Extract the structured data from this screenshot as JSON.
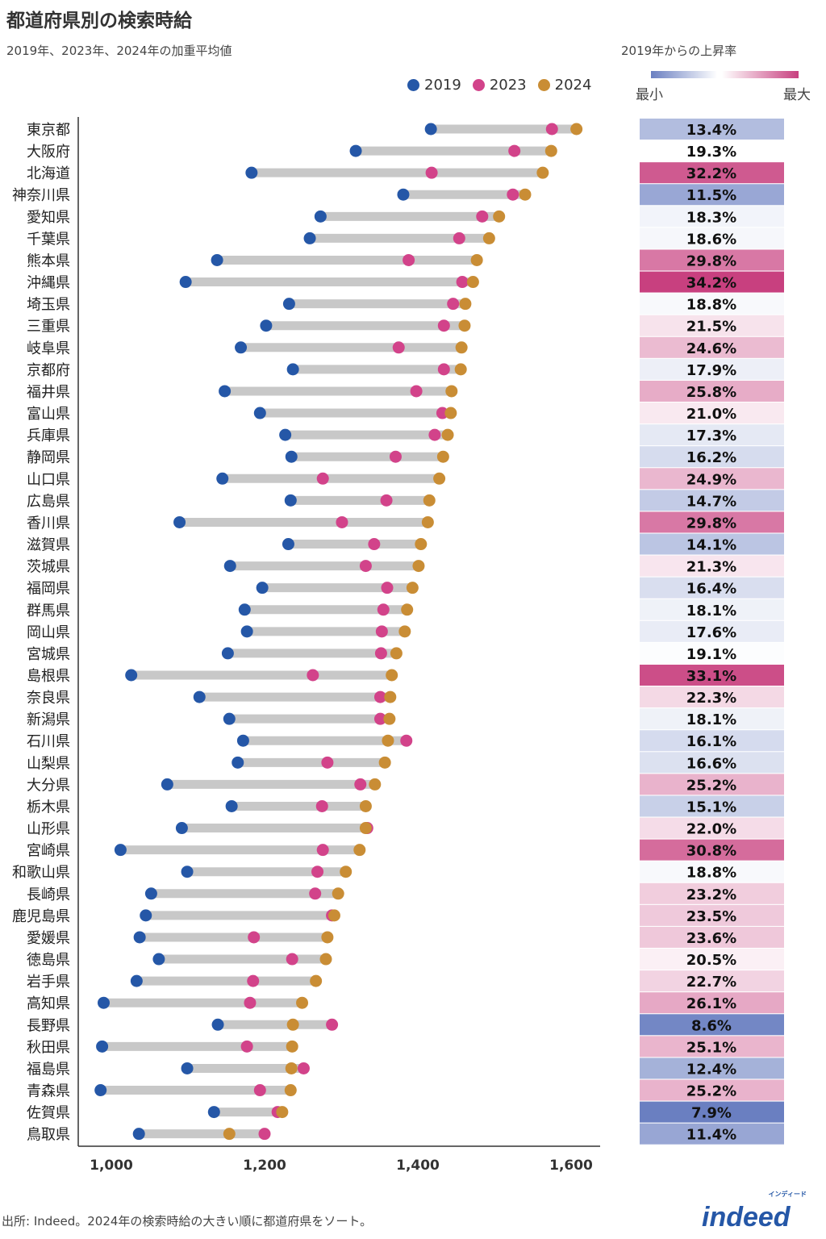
{
  "title": "都道府県別の検索時給",
  "subtitle": "2019年、2023年、2024年の加重平均値",
  "rate_panel": {
    "title": "2019年からの上昇率",
    "min_label": "最小",
    "max_label": "最大"
  },
  "source": "出所: Indeed。2024年の検索時給の大きい順に都道府県をソート。",
  "logo": {
    "text": "indeed",
    "sub": "インディード"
  },
  "colors": {
    "2019": "#2557a7",
    "2023": "#d2438a",
    "2024": "#c98d35",
    "bar": "#c8c8c8",
    "rate_min": "#6a7fc1",
    "rate_mid": "#ffffff",
    "rate_max": "#c8407f"
  },
  "chart_data": {
    "type": "dumbbell",
    "xlim": [
      1000,
      1650
    ],
    "xticks": [
      1000,
      1200,
      1400,
      1600
    ],
    "xtick_labels": [
      "1,000",
      "1,200",
      "1,400",
      "1,600"
    ],
    "legend_position": "top-right",
    "series_names": [
      "2019",
      "2023",
      "2024"
    ],
    "rows": [
      {
        "pref": "東京都",
        "v2019": 1417,
        "v2023": 1575,
        "v2024": 1607,
        "rate": "13.4%",
        "r": 13.4
      },
      {
        "pref": "大阪府",
        "v2019": 1319,
        "v2023": 1526,
        "v2024": 1574,
        "rate": "19.3%",
        "r": 19.3
      },
      {
        "pref": "北海道",
        "v2019": 1183,
        "v2023": 1418,
        "v2024": 1563,
        "rate": "32.2%",
        "r": 32.2
      },
      {
        "pref": "神奈川県",
        "v2019": 1381,
        "v2023": 1524,
        "v2024": 1540,
        "rate": "11.5%",
        "r": 11.5
      },
      {
        "pref": "愛知県",
        "v2019": 1273,
        "v2023": 1484,
        "v2024": 1506,
        "rate": "18.3%",
        "r": 18.3
      },
      {
        "pref": "千葉県",
        "v2019": 1259,
        "v2023": 1454,
        "v2024": 1493,
        "rate": "18.6%",
        "r": 18.6
      },
      {
        "pref": "熊本県",
        "v2019": 1138,
        "v2023": 1388,
        "v2024": 1477,
        "rate": "29.8%",
        "r": 29.8
      },
      {
        "pref": "沖縄県",
        "v2019": 1097,
        "v2023": 1458,
        "v2024": 1472,
        "rate": "34.2%",
        "r": 34.2
      },
      {
        "pref": "埼玉県",
        "v2019": 1232,
        "v2023": 1446,
        "v2024": 1462,
        "rate": "18.8%",
        "r": 18.8
      },
      {
        "pref": "三重県",
        "v2019": 1202,
        "v2023": 1434,
        "v2024": 1461,
        "rate": "21.5%",
        "r": 21.5
      },
      {
        "pref": "岐阜県",
        "v2019": 1169,
        "v2023": 1375,
        "v2024": 1457,
        "rate": "24.6%",
        "r": 24.6
      },
      {
        "pref": "京都府",
        "v2019": 1237,
        "v2023": 1434,
        "v2024": 1456,
        "rate": "17.9%",
        "r": 17.9
      },
      {
        "pref": "福井県",
        "v2019": 1148,
        "v2023": 1398,
        "v2024": 1444,
        "rate": "25.8%",
        "r": 25.8
      },
      {
        "pref": "富山県",
        "v2019": 1194,
        "v2023": 1432,
        "v2024": 1443,
        "rate": "21.0%",
        "r": 21.0
      },
      {
        "pref": "兵庫県",
        "v2019": 1227,
        "v2023": 1422,
        "v2024": 1439,
        "rate": "17.3%",
        "r": 17.3
      },
      {
        "pref": "静岡県",
        "v2019": 1235,
        "v2023": 1371,
        "v2024": 1433,
        "rate": "16.2%",
        "r": 16.2
      },
      {
        "pref": "山口県",
        "v2019": 1145,
        "v2023": 1276,
        "v2024": 1428,
        "rate": "24.9%",
        "r": 24.9
      },
      {
        "pref": "広島県",
        "v2019": 1234,
        "v2023": 1359,
        "v2024": 1415,
        "rate": "14.7%",
        "r": 14.7
      },
      {
        "pref": "香川県",
        "v2019": 1089,
        "v2023": 1301,
        "v2024": 1413,
        "rate": "29.8%",
        "r": 29.8
      },
      {
        "pref": "滋賀県",
        "v2019": 1231,
        "v2023": 1343,
        "v2024": 1404,
        "rate": "14.1%",
        "r": 14.1
      },
      {
        "pref": "茨城県",
        "v2019": 1155,
        "v2023": 1332,
        "v2024": 1401,
        "rate": "21.3%",
        "r": 21.3
      },
      {
        "pref": "福岡県",
        "v2019": 1197,
        "v2023": 1360,
        "v2024": 1393,
        "rate": "16.4%",
        "r": 16.4
      },
      {
        "pref": "群馬県",
        "v2019": 1174,
        "v2023": 1355,
        "v2024": 1386,
        "rate": "18.1%",
        "r": 18.1
      },
      {
        "pref": "岡山県",
        "v2019": 1177,
        "v2023": 1353,
        "v2024": 1383,
        "rate": "17.6%",
        "r": 17.6
      },
      {
        "pref": "宮城県",
        "v2019": 1152,
        "v2023": 1352,
        "v2024": 1372,
        "rate": "19.1%",
        "r": 19.1
      },
      {
        "pref": "島根県",
        "v2019": 1026,
        "v2023": 1263,
        "v2024": 1366,
        "rate": "33.1%",
        "r": 33.1
      },
      {
        "pref": "奈良県",
        "v2019": 1115,
        "v2023": 1351,
        "v2024": 1364,
        "rate": "22.3%",
        "r": 22.3
      },
      {
        "pref": "新潟県",
        "v2019": 1154,
        "v2023": 1351,
        "v2024": 1363,
        "rate": "18.1%",
        "r": 18.1
      },
      {
        "pref": "石川県",
        "v2019": 1172,
        "v2023": 1385,
        "v2024": 1361,
        "rate": "16.1%",
        "r": 16.1
      },
      {
        "pref": "山梨県",
        "v2019": 1165,
        "v2023": 1282,
        "v2024": 1357,
        "rate": "16.6%",
        "r": 16.6
      },
      {
        "pref": "大分県",
        "v2019": 1073,
        "v2023": 1325,
        "v2024": 1344,
        "rate": "25.2%",
        "r": 25.2
      },
      {
        "pref": "栃木県",
        "v2019": 1157,
        "v2023": 1275,
        "v2024": 1332,
        "rate": "15.1%",
        "r": 15.1
      },
      {
        "pref": "山形県",
        "v2019": 1092,
        "v2023": 1334,
        "v2024": 1332,
        "rate": "22.0%",
        "r": 22.0
      },
      {
        "pref": "宮崎県",
        "v2019": 1012,
        "v2023": 1276,
        "v2024": 1324,
        "rate": "30.8%",
        "r": 30.8
      },
      {
        "pref": "和歌山県",
        "v2019": 1099,
        "v2023": 1269,
        "v2024": 1306,
        "rate": "18.8%",
        "r": 18.8
      },
      {
        "pref": "長崎県",
        "v2019": 1052,
        "v2023": 1266,
        "v2024": 1296,
        "rate": "23.2%",
        "r": 23.2
      },
      {
        "pref": "鹿児島県",
        "v2019": 1045,
        "v2023": 1288,
        "v2024": 1291,
        "rate": "23.5%",
        "r": 23.5
      },
      {
        "pref": "愛媛県",
        "v2019": 1037,
        "v2023": 1186,
        "v2024": 1282,
        "rate": "23.6%",
        "r": 23.6
      },
      {
        "pref": "徳島県",
        "v2019": 1062,
        "v2023": 1236,
        "v2024": 1280,
        "rate": "20.5%",
        "r": 20.5
      },
      {
        "pref": "岩手県",
        "v2019": 1033,
        "v2023": 1185,
        "v2024": 1267,
        "rate": "22.7%",
        "r": 22.7
      },
      {
        "pref": "高知県",
        "v2019": 990,
        "v2023": 1181,
        "v2024": 1249,
        "rate": "26.1%",
        "r": 26.1
      },
      {
        "pref": "長野県",
        "v2019": 1139,
        "v2023": 1288,
        "v2024": 1237,
        "rate": "8.6%",
        "r": 8.6
      },
      {
        "pref": "秋田県",
        "v2019": 988,
        "v2023": 1177,
        "v2024": 1236,
        "rate": "25.1%",
        "r": 25.1
      },
      {
        "pref": "福島県",
        "v2019": 1099,
        "v2023": 1251,
        "v2024": 1235,
        "rate": "12.4%",
        "r": 12.4
      },
      {
        "pref": "青森県",
        "v2019": 986,
        "v2023": 1194,
        "v2024": 1234,
        "rate": "25.2%",
        "r": 25.2
      },
      {
        "pref": "佐賀県",
        "v2019": 1134,
        "v2023": 1217,
        "v2024": 1223,
        "rate": "7.9%",
        "r": 7.9
      },
      {
        "pref": "鳥取県",
        "v2019": 1036,
        "v2023": 1200,
        "v2024": 1154,
        "rate": "11.4%",
        "r": 11.4
      }
    ]
  }
}
